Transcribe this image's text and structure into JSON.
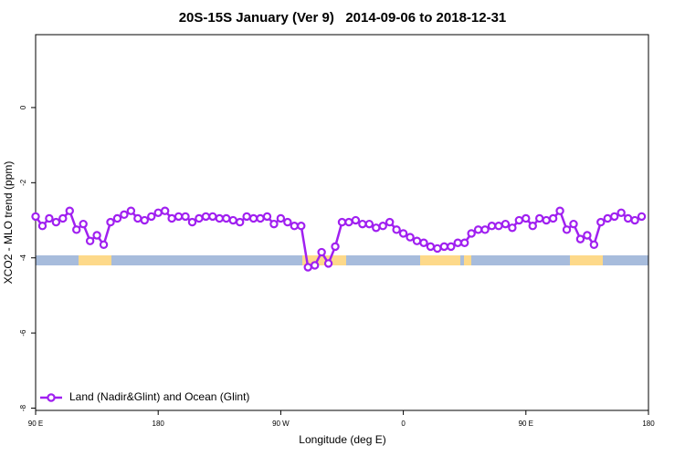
{
  "chart_data": {
    "type": "line",
    "title": "20S-15S January (Ver 9)   2014-09-06 to 2018-12-31",
    "x_label": "Longitude (deg E)",
    "y_label": "XCO2 - MLO trend (ppm)",
    "xlim": [
      90,
      540
    ],
    "ylim": [
      -8.06,
      1.94
    ],
    "xticks": [
      {
        "value": 90,
        "label": "90 E"
      },
      180,
      {
        "value": 270,
        "label": "90 W"
      },
      {
        "value": 360,
        "label": "0"
      },
      {
        "value": 450,
        "label": "90 E"
      },
      {
        "value": 540,
        "label": "180"
      }
    ],
    "yticks": [
      0,
      -2,
      -4,
      -6,
      -8
    ],
    "legend": "bottom-left",
    "x": [
      90,
      95,
      100,
      105,
      110,
      115,
      120,
      125,
      130,
      135,
      140,
      145,
      150,
      155,
      160,
      165,
      170,
      175,
      180,
      185,
      190,
      195,
      200,
      205,
      210,
      215,
      220,
      225,
      230,
      235,
      240,
      245,
      250,
      255,
      260,
      265,
      270,
      275,
      280,
      285,
      290,
      295,
      300,
      305,
      310,
      315,
      320,
      325,
      330,
      335,
      340,
      345,
      350,
      355,
      360,
      365,
      370,
      375,
      380,
      385,
      390,
      395,
      400,
      405,
      410,
      415,
      420,
      425,
      430,
      435,
      440,
      445,
      450,
      455,
      460,
      465,
      470,
      475,
      480,
      485,
      490,
      495,
      500,
      505,
      510,
      515,
      520,
      525,
      530,
      535
    ],
    "series": [
      {
        "name": "Land (Nadir&Glint) and Ocean (Glint)",
        "color": "#a020f0",
        "values": [
          -2.9,
          -3.15,
          -2.95,
          -3.05,
          -2.95,
          -2.75,
          -3.25,
          -3.1,
          -3.55,
          -3.4,
          -3.65,
          -3.05,
          -2.95,
          -2.85,
          -2.75,
          -2.95,
          -3.0,
          -2.9,
          -2.8,
          -2.75,
          -2.95,
          -2.9,
          -2.9,
          -3.05,
          -2.95,
          -2.9,
          -2.9,
          -2.95,
          -2.95,
          -3.0,
          -3.05,
          -2.9,
          -2.95,
          -2.95,
          -2.9,
          -3.1,
          -2.95,
          -3.05,
          -3.15,
          -3.15,
          -4.25,
          -4.2,
          -3.85,
          -4.15,
          -3.7,
          -3.05,
          -3.05,
          -3.0,
          -3.1,
          -3.1,
          -3.2,
          -3.15,
          -3.05,
          -3.25,
          -3.35,
          -3.45,
          -3.55,
          -3.6,
          -3.7,
          -3.75,
          -3.7,
          -3.7,
          -3.6,
          -3.6,
          -3.35,
          -3.25,
          -3.25,
          -3.15,
          -3.15,
          -3.1,
          -3.2,
          -3.0,
          -2.95,
          -3.15,
          -2.95,
          -3.0,
          -2.95,
          -2.75,
          -3.25,
          -3.1,
          -3.5,
          -3.4,
          -3.65,
          -3.05,
          -2.95,
          -2.9,
          -2.8,
          -2.95,
          -3.0,
          -2.9
        ]
      }
    ]
  }
}
